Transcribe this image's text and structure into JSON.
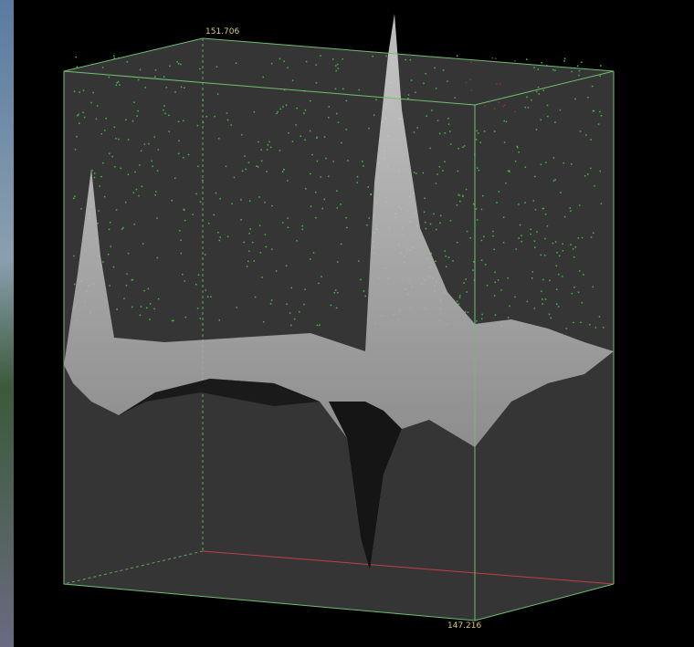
{
  "labels": {
    "top": "151.706",
    "bottom": "147.216"
  }
}
